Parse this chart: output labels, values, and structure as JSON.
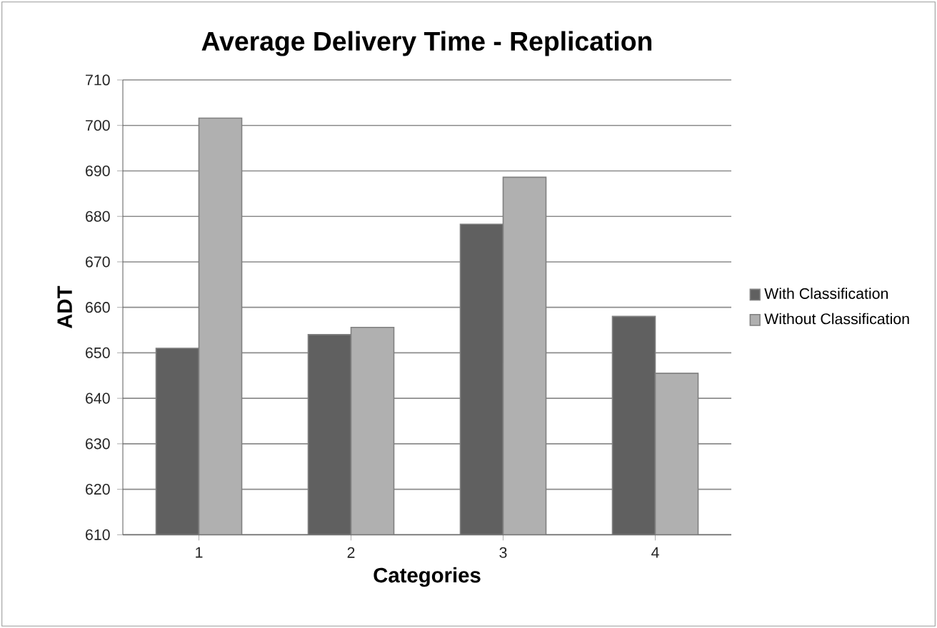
{
  "chart_data": {
    "type": "bar",
    "title": "Average Delivery Time - Replication",
    "xlabel": "Categories",
    "ylabel": "ADT",
    "categories": [
      "1",
      "2",
      "3",
      "4"
    ],
    "series": [
      {
        "name": "With Classification",
        "color": "#606060",
        "values": [
          651,
          654,
          678.3,
          658
        ]
      },
      {
        "name": "Without Classification",
        "color": "#b0b0b0",
        "values": [
          701.6,
          655.6,
          688.6,
          645.5
        ]
      }
    ],
    "ylim": [
      610,
      710
    ],
    "yticks": [
      610,
      620,
      630,
      640,
      650,
      660,
      670,
      680,
      690,
      700,
      710
    ],
    "grid": "y",
    "legend": "right"
  }
}
